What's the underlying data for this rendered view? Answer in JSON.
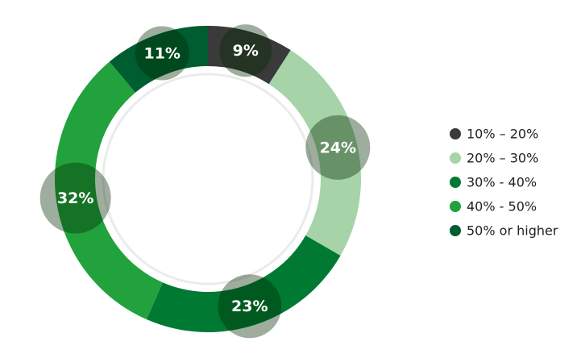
{
  "chart_data": {
    "type": "donut",
    "categories": [
      "10% – 20%",
      "20% – 30%",
      "30% - 40%",
      "40% - 50%",
      "50% or higher"
    ],
    "values": [
      9,
      24,
      23,
      32,
      11
    ],
    "value_labels": [
      "9%",
      "24%",
      "23%",
      "32%",
      "11%"
    ],
    "colors": [
      "#3a3a3a",
      "#a6d4a8",
      "#007a33",
      "#22a23c",
      "#005c31"
    ],
    "legend": "right"
  }
}
